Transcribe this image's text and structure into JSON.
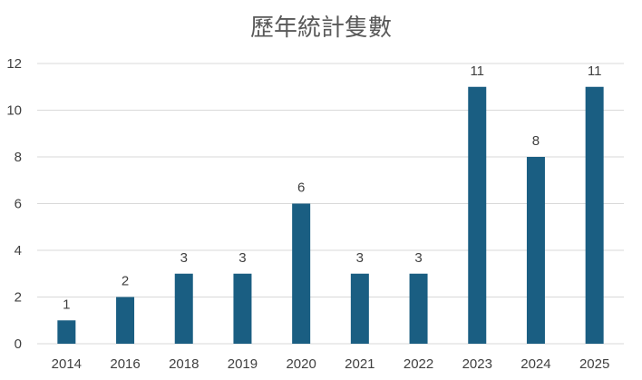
{
  "chart_data": {
    "type": "bar",
    "title": "歷年統計隻數",
    "xlabel": "",
    "ylabel": "",
    "categories": [
      "2014",
      "2016",
      "2018",
      "2019",
      "2020",
      "2021",
      "2022",
      "2023",
      "2024",
      "2025"
    ],
    "values": [
      1,
      2,
      3,
      3,
      6,
      3,
      3,
      11,
      8,
      11
    ],
    "ylim": [
      0,
      12
    ],
    "yticks": [
      0,
      2,
      4,
      6,
      8,
      10,
      12
    ],
    "grid": true,
    "legend": "none",
    "data_labels": true,
    "bar_color": "#1a5e82"
  }
}
